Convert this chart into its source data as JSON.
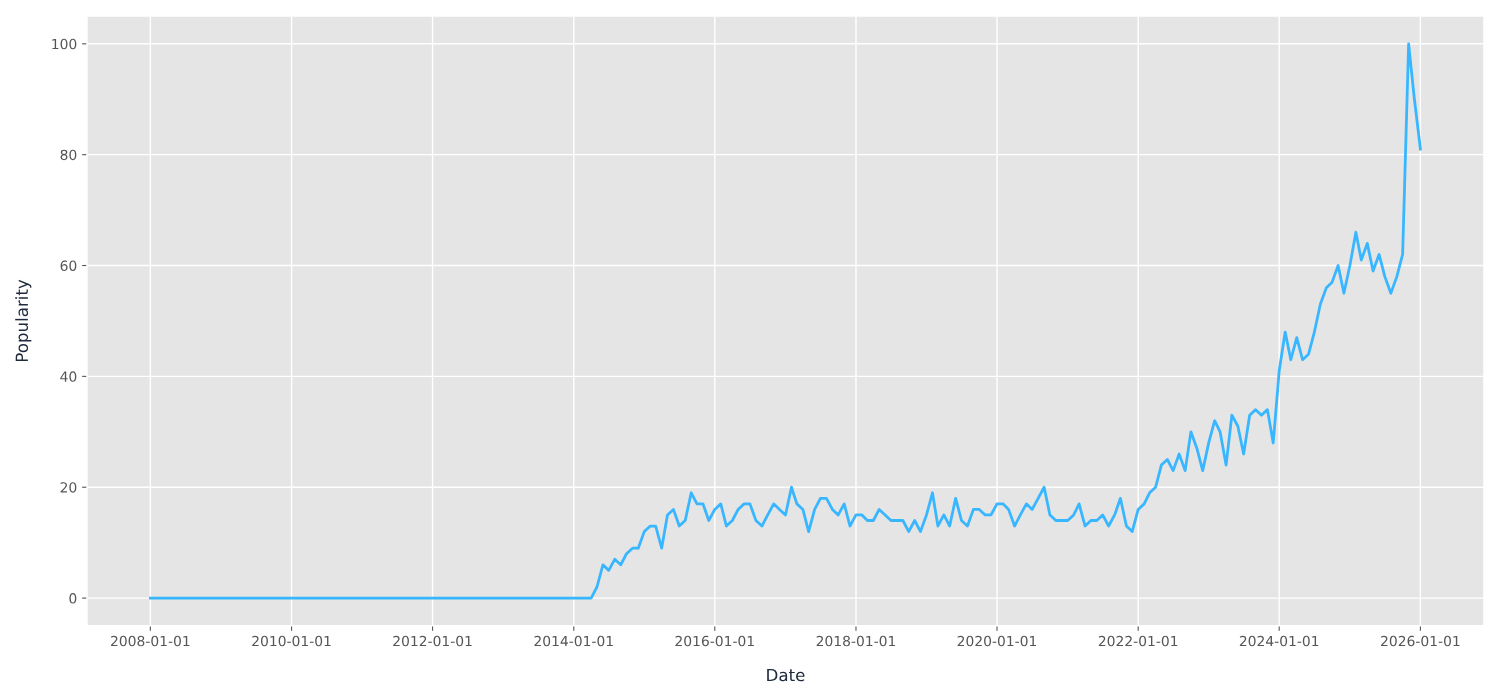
{
  "chart_data": {
    "type": "line",
    "xlabel": "Date",
    "ylabel": "Popularity",
    "x": [
      "2008-01",
      "2014-04",
      "2014-05",
      "2014-06",
      "2014-07",
      "2014-08",
      "2014-09",
      "2014-10",
      "2014-11",
      "2014-12",
      "2015-01",
      "2015-02",
      "2015-03",
      "2015-04",
      "2015-05",
      "2015-06",
      "2015-07",
      "2015-08",
      "2015-09",
      "2015-10",
      "2015-11",
      "2015-12",
      "2016-01",
      "2016-02",
      "2016-03",
      "2016-04",
      "2016-05",
      "2016-06",
      "2016-07",
      "2016-08",
      "2016-09",
      "2016-10",
      "2016-11",
      "2016-12",
      "2017-01",
      "2017-02",
      "2017-03",
      "2017-04",
      "2017-05",
      "2017-06",
      "2017-07",
      "2017-08",
      "2017-09",
      "2017-10",
      "2017-11",
      "2017-12",
      "2018-01",
      "2018-02",
      "2018-03",
      "2018-04",
      "2018-05",
      "2018-06",
      "2018-07",
      "2018-08",
      "2018-09",
      "2018-10",
      "2018-11",
      "2018-12",
      "2019-01",
      "2019-02",
      "2019-03",
      "2019-04",
      "2019-05",
      "2019-06",
      "2019-07",
      "2019-08",
      "2019-09",
      "2019-10",
      "2019-11",
      "2019-12",
      "2020-01",
      "2020-02",
      "2020-03",
      "2020-04",
      "2020-05",
      "2020-06",
      "2020-07",
      "2020-08",
      "2020-09",
      "2020-10",
      "2020-11",
      "2020-12",
      "2021-01",
      "2021-02",
      "2021-03",
      "2021-04",
      "2021-05",
      "2021-06",
      "2021-07",
      "2021-08",
      "2021-09",
      "2021-10",
      "2021-11",
      "2021-12",
      "2022-01",
      "2022-02",
      "2022-03",
      "2022-04",
      "2022-05",
      "2022-06",
      "2022-07",
      "2022-08",
      "2022-09",
      "2022-10",
      "2022-11",
      "2022-12",
      "2023-01",
      "2023-02",
      "2023-03",
      "2023-04",
      "2023-05",
      "2023-06",
      "2023-07",
      "2023-08",
      "2023-09",
      "2023-10",
      "2023-11",
      "2023-12",
      "2024-01",
      "2024-02",
      "2024-03",
      "2024-04",
      "2024-05",
      "2024-06",
      "2024-07",
      "2024-08",
      "2024-09",
      "2024-10",
      "2024-11",
      "2024-12",
      "2025-01",
      "2025-02",
      "2025-03",
      "2025-04",
      "2025-05",
      "2025-06",
      "2025-07",
      "2025-08",
      "2025-09",
      "2025-10",
      "2025-11",
      "2025-12",
      "2026-01"
    ],
    "series": [
      {
        "color": "#38b6ff",
        "values": [
          0,
          0,
          2,
          6,
          5,
          7,
          6,
          8,
          9,
          9,
          12,
          13,
          13,
          9,
          15,
          16,
          13,
          14,
          19,
          17,
          17,
          14,
          16,
          17,
          13,
          14,
          16,
          17,
          17,
          14,
          13,
          15,
          17,
          16,
          15,
          20,
          17,
          16,
          12,
          16,
          18,
          18,
          16,
          15,
          17,
          13,
          15,
          15,
          14,
          14,
          16,
          15,
          14,
          14,
          14,
          12,
          14,
          12,
          15,
          19,
          13,
          15,
          13,
          18,
          14,
          13,
          16,
          16,
          15,
          15,
          17,
          17,
          16,
          13,
          15,
          17,
          16,
          18,
          20,
          15,
          14,
          14,
          14,
          15,
          17,
          13,
          14,
          14,
          15,
          13,
          15,
          18,
          13,
          12,
          16,
          17,
          19,
          20,
          24,
          25,
          23,
          26,
          23,
          30,
          27,
          23,
          28,
          32,
          30,
          24,
          33,
          31,
          26,
          33,
          34,
          33,
          34,
          28,
          41,
          48,
          43,
          47,
          43,
          44,
          48,
          53,
          56,
          57,
          60,
          55,
          60,
          66,
          61,
          64,
          59,
          62,
          58,
          55,
          58,
          62,
          100,
          90,
          81
        ]
      }
    ],
    "xlim": [
      "2007-02-07",
      "2026-11-26"
    ],
    "ylim": [
      -5,
      105
    ],
    "xticks": [
      "2008-01-01",
      "2010-01-01",
      "2012-01-01",
      "2014-01-01",
      "2016-01-01",
      "2018-01-01",
      "2020-01-01",
      "2022-01-01",
      "2024-01-01",
      "2026-01-01"
    ],
    "yticks": [
      0,
      20,
      40,
      60,
      80,
      100
    ],
    "grid": true,
    "line_style": "solid"
  }
}
